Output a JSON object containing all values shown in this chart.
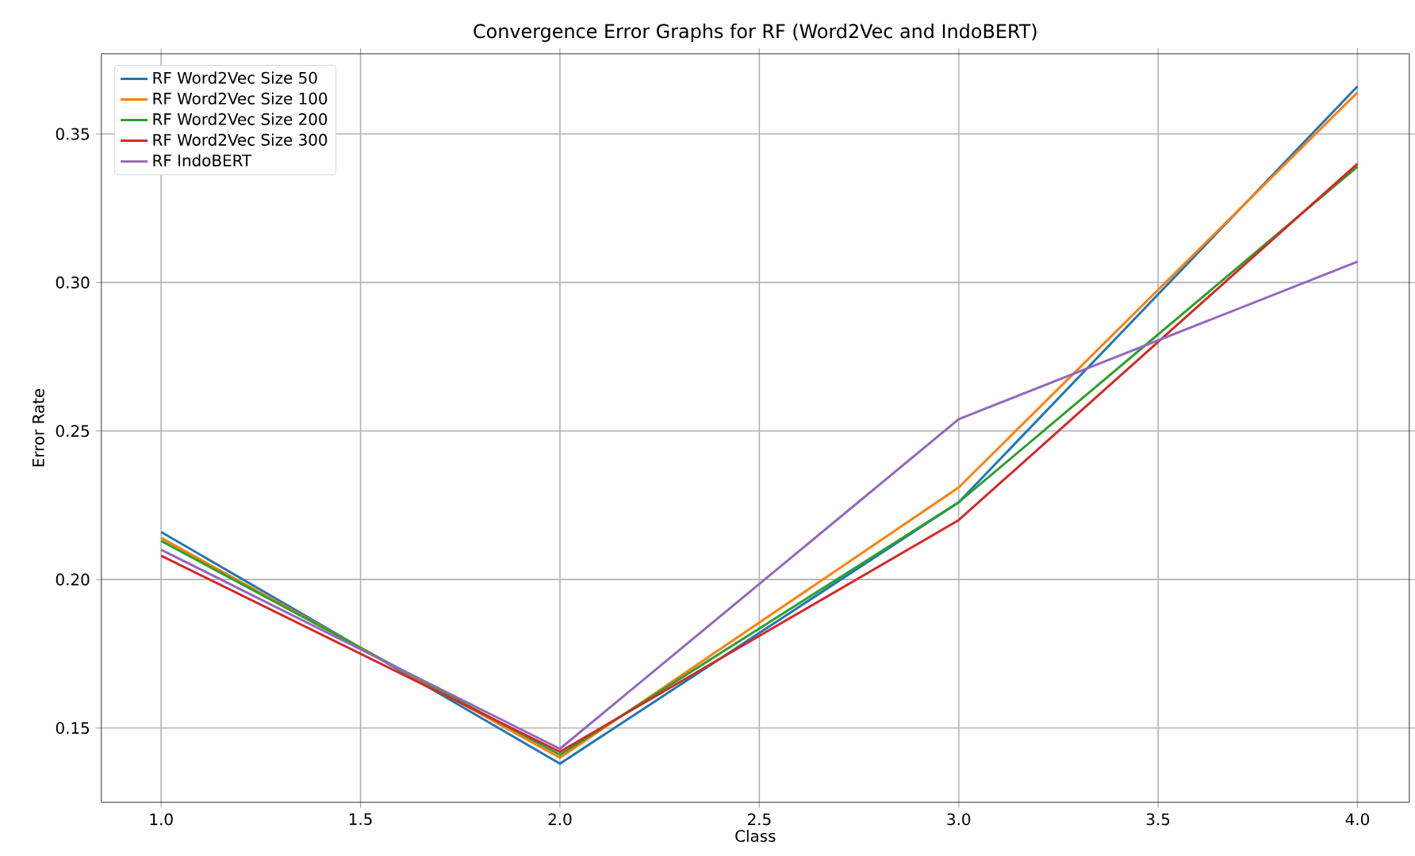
{
  "chart_data": {
    "type": "line",
    "title": "Convergence Error Graphs for RF (Word2Vec and IndoBERT)",
    "xlabel": "Class",
    "ylabel": "Error Rate",
    "x": [
      1,
      2,
      3,
      4
    ],
    "series": [
      {
        "name": "RF Word2Vec Size 50",
        "color": "#1f77b4",
        "values": [
          0.216,
          0.138,
          0.226,
          0.366
        ]
      },
      {
        "name": "RF Word2Vec Size 100",
        "color": "#ff7f0e",
        "values": [
          0.214,
          0.14,
          0.231,
          0.364
        ]
      },
      {
        "name": "RF Word2Vec Size 200",
        "color": "#2ca02c",
        "values": [
          0.213,
          0.141,
          0.226,
          0.339
        ]
      },
      {
        "name": "RF Word2Vec Size 300",
        "color": "#d62728",
        "values": [
          0.208,
          0.142,
          0.22,
          0.34
        ]
      },
      {
        "name": "RF IndoBERT",
        "color": "#9467bd",
        "values": [
          0.21,
          0.143,
          0.254,
          0.307
        ]
      }
    ],
    "xlim": [
      0.85,
      4.13
    ],
    "ylim": [
      0.125,
      0.377
    ],
    "xticks": [
      {
        "value": 1,
        "label": "1.0"
      },
      {
        "value": 1.5,
        "label": "1.5"
      },
      {
        "value": 2,
        "label": "2.0"
      },
      {
        "value": 2.5,
        "label": "2.5"
      },
      {
        "value": 3,
        "label": "3.0"
      },
      {
        "value": 3.5,
        "label": "3.5"
      },
      {
        "value": 4,
        "label": "4.0"
      }
    ],
    "yticks": [
      {
        "value": 0.15,
        "label": "0.15"
      },
      {
        "value": 0.2,
        "label": "0.20"
      },
      {
        "value": 0.25,
        "label": "0.25"
      },
      {
        "value": 0.3,
        "label": "0.30"
      },
      {
        "value": 0.35,
        "label": "0.35"
      }
    ],
    "grid": true,
    "legend": "top left",
    "marker": "none",
    "line_style": "solid"
  }
}
